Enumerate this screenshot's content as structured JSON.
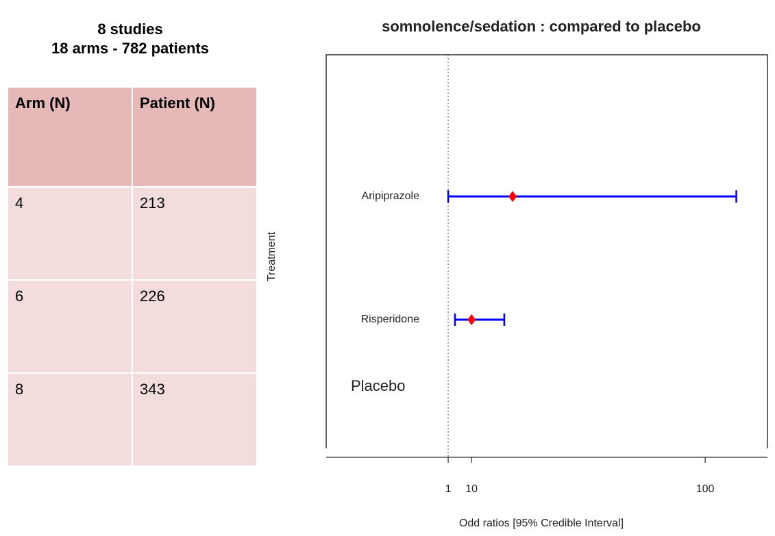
{
  "table": {
    "title": [
      "8 studies",
      "18 arms - 782 patients"
    ],
    "header": [
      "Arm (N)",
      "Patient (N)"
    ],
    "rows": [
      [
        "4",
        "213"
      ],
      [
        "6",
        "226"
      ],
      [
        "8",
        "343"
      ]
    ]
  },
  "chart_data": {
    "type": "forest",
    "title": "somnolence/sedation : compared to placebo",
    "ylabel": "Treatment",
    "xlabel": "Odd ratios [95% Credible Interval]",
    "categories": [
      "Aripiprazole",
      "Risperidone",
      "Placebo"
    ],
    "values": [
      25.8,
      10,
      null
    ],
    "lower": [
      1,
      3.6,
      null
    ],
    "upper": [
      112,
      22.6,
      null
    ],
    "xlim": [
      -46,
      124
    ],
    "xticks": [
      1,
      10,
      100
    ],
    "refline": 1,
    "color": "#0000ff",
    "point_color": "#ff0000"
  }
}
